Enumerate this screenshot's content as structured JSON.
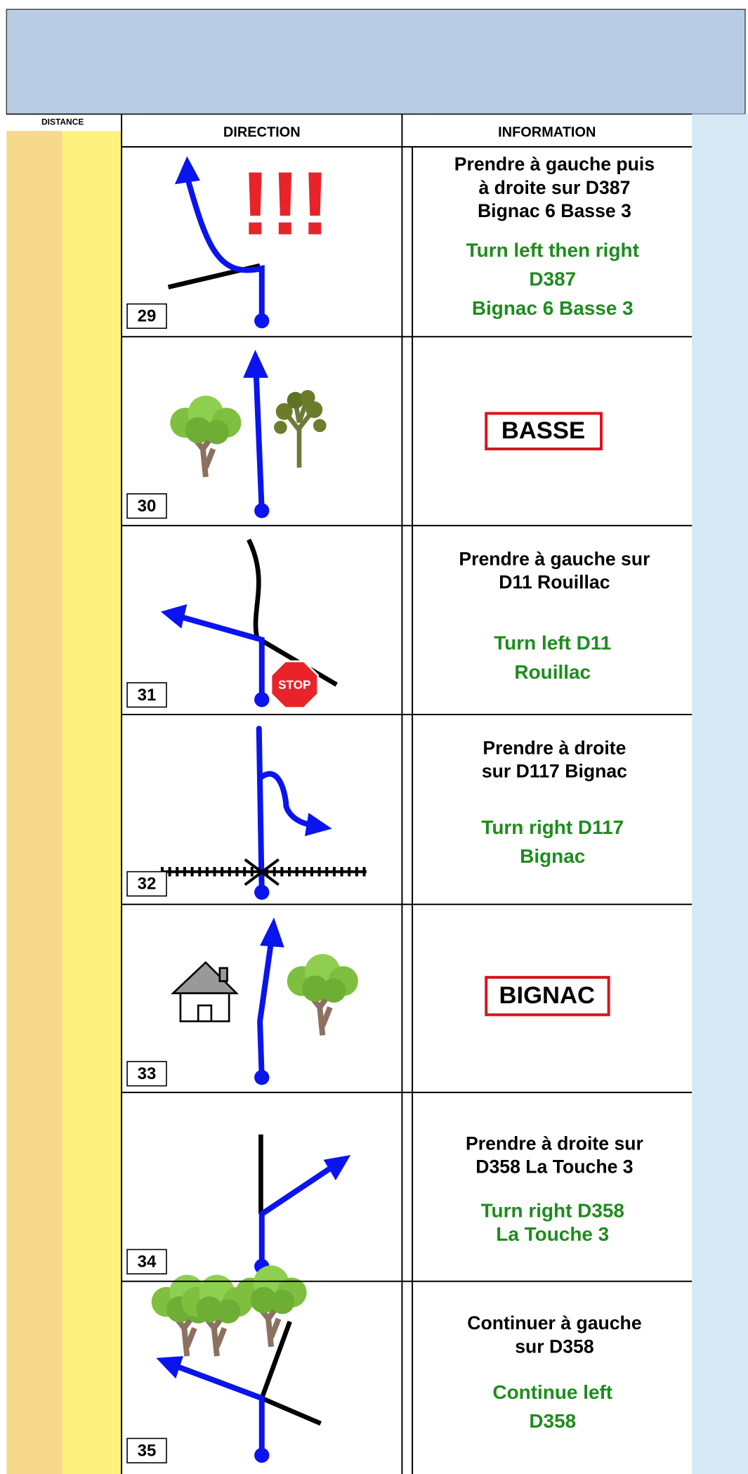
{
  "header": {
    "distance": "DISTANCE",
    "direction": "DIRECTION",
    "information": "INFORMATION"
  },
  "rows": [
    {
      "number": 29,
      "alert": "!!!",
      "french": [
        "Prendre à gauche puis",
        "à droite sur D387",
        "Bignac 6 Basse 3"
      ],
      "english": [
        "Turn left then right",
        "D387",
        "Bignac 6 Basse 3"
      ]
    },
    {
      "number": 30,
      "sign": "BASSE"
    },
    {
      "number": 31,
      "stop_sign": "STOP",
      "french": [
        "Prendre à gauche sur",
        "D11 Rouillac"
      ],
      "english": [
        "Turn left D11",
        "Rouillac"
      ]
    },
    {
      "number": 32,
      "french": [
        "Prendre à droite",
        "sur D117 Bignac"
      ],
      "english": [
        "Turn right  D117",
        "Bignac"
      ]
    },
    {
      "number": 33,
      "sign": "BIGNAC"
    },
    {
      "number": 34,
      "french": [
        "Prendre à droite sur",
        "D358 La Touche 3"
      ],
      "english": [
        "Turn right D358",
        "La Touche 3"
      ]
    },
    {
      "number": 35,
      "french": [
        "Continuer à gauche",
        "sur D358"
      ],
      "english": [
        "Continue left",
        "D358"
      ]
    }
  ]
}
